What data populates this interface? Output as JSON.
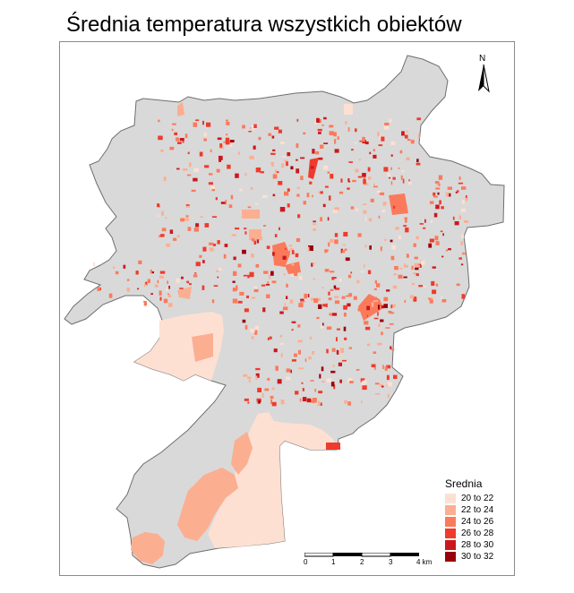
{
  "title": "Średnia temperatura wszystkich obiektów",
  "north": {
    "label": "N",
    "icon": "north-arrow-icon"
  },
  "legend": {
    "title": "Srednia",
    "items": [
      {
        "label": "20 to 22",
        "color": "#fde0d2"
      },
      {
        "label": "22 to 24",
        "color": "#fcae91"
      },
      {
        "label": "24 to 26",
        "color": "#fb7a5b"
      },
      {
        "label": "26 to 28",
        "color": "#ef3b2c"
      },
      {
        "label": "28 to 30",
        "color": "#cb181d"
      },
      {
        "label": "30 to 32",
        "color": "#99000d"
      }
    ]
  },
  "scale": {
    "ticks": [
      "0",
      "1",
      "2",
      "3",
      "4 km"
    ]
  },
  "colors": {
    "background_area": "#d9d9d9",
    "outline": "#6e6e6e"
  }
}
